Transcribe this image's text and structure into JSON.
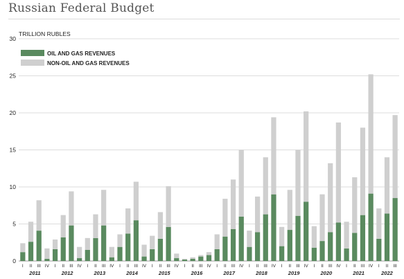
{
  "chart_data": {
    "type": "bar",
    "stacked": true,
    "title": "Russian Federal Budget",
    "ylabel": "TRILLION RUBLES",
    "xlabel": "",
    "ylim": [
      0,
      30
    ],
    "yticks": [
      0,
      5,
      10,
      15,
      20,
      25,
      30
    ],
    "grid": true,
    "legend_position": "top-left",
    "colors": {
      "oil": "#5a8a5f",
      "nonoil": "#cfcfcf",
      "grid": "#dddddd"
    },
    "years": [
      "2011",
      "2012",
      "2013",
      "2014",
      "2015",
      "2016",
      "2017",
      "2018",
      "2019",
      "2020",
      "2021",
      "2022"
    ],
    "categories": [
      "I",
      "II",
      "III",
      "IV",
      "I",
      "II",
      "III",
      "IV",
      "I",
      "II",
      "III",
      "IV",
      "I",
      "II",
      "III",
      "IV",
      "I",
      "II",
      "III",
      "IV",
      "I",
      "II",
      "III",
      "IV",
      "I",
      "II",
      "III",
      "IV",
      "I",
      "II",
      "III",
      "IV",
      "I",
      "II",
      "III",
      "IV",
      "I",
      "II",
      "III",
      "IV",
      "I",
      "II",
      "III",
      "IV",
      "I",
      "II",
      "III"
    ],
    "series": [
      {
        "name": "OIL AND GAS REVENUES",
        "values": [
          1.2,
          2.6,
          4.1,
          0.3,
          1.6,
          3.2,
          4.8,
          0.4,
          1.5,
          3.1,
          4.8,
          0.5,
          1.9,
          3.7,
          5.5,
          0.6,
          1.6,
          3.0,
          4.6,
          0.4,
          0.2,
          0.3,
          0.6,
          0.8,
          1.6,
          3.3,
          4.3,
          6.0,
          1.9,
          3.9,
          6.3,
          9.0,
          2.0,
          4.2,
          6.1,
          8.0,
          1.8,
          2.7,
          3.9,
          5.2,
          1.7,
          3.8,
          6.2,
          9.1,
          3.0,
          6.4,
          8.5
        ]
      },
      {
        "name": "NON-OIL AND GAS REVENUES",
        "values": [
          1.2,
          2.7,
          4.1,
          1.4,
          1.3,
          3.0,
          4.6,
          1.5,
          1.6,
          3.2,
          4.8,
          1.4,
          1.7,
          3.4,
          5.2,
          1.6,
          1.8,
          3.6,
          5.5,
          0.6,
          0.1,
          0.2,
          0.2,
          0.4,
          2.0,
          5.1,
          6.7,
          9.0,
          2.2,
          4.8,
          7.7,
          10.4,
          2.6,
          5.4,
          8.9,
          12.2,
          2.9,
          6.3,
          9.3,
          13.5,
          3.6,
          7.5,
          11.8,
          16.1,
          4.1,
          7.6,
          11.2
        ]
      }
    ]
  }
}
